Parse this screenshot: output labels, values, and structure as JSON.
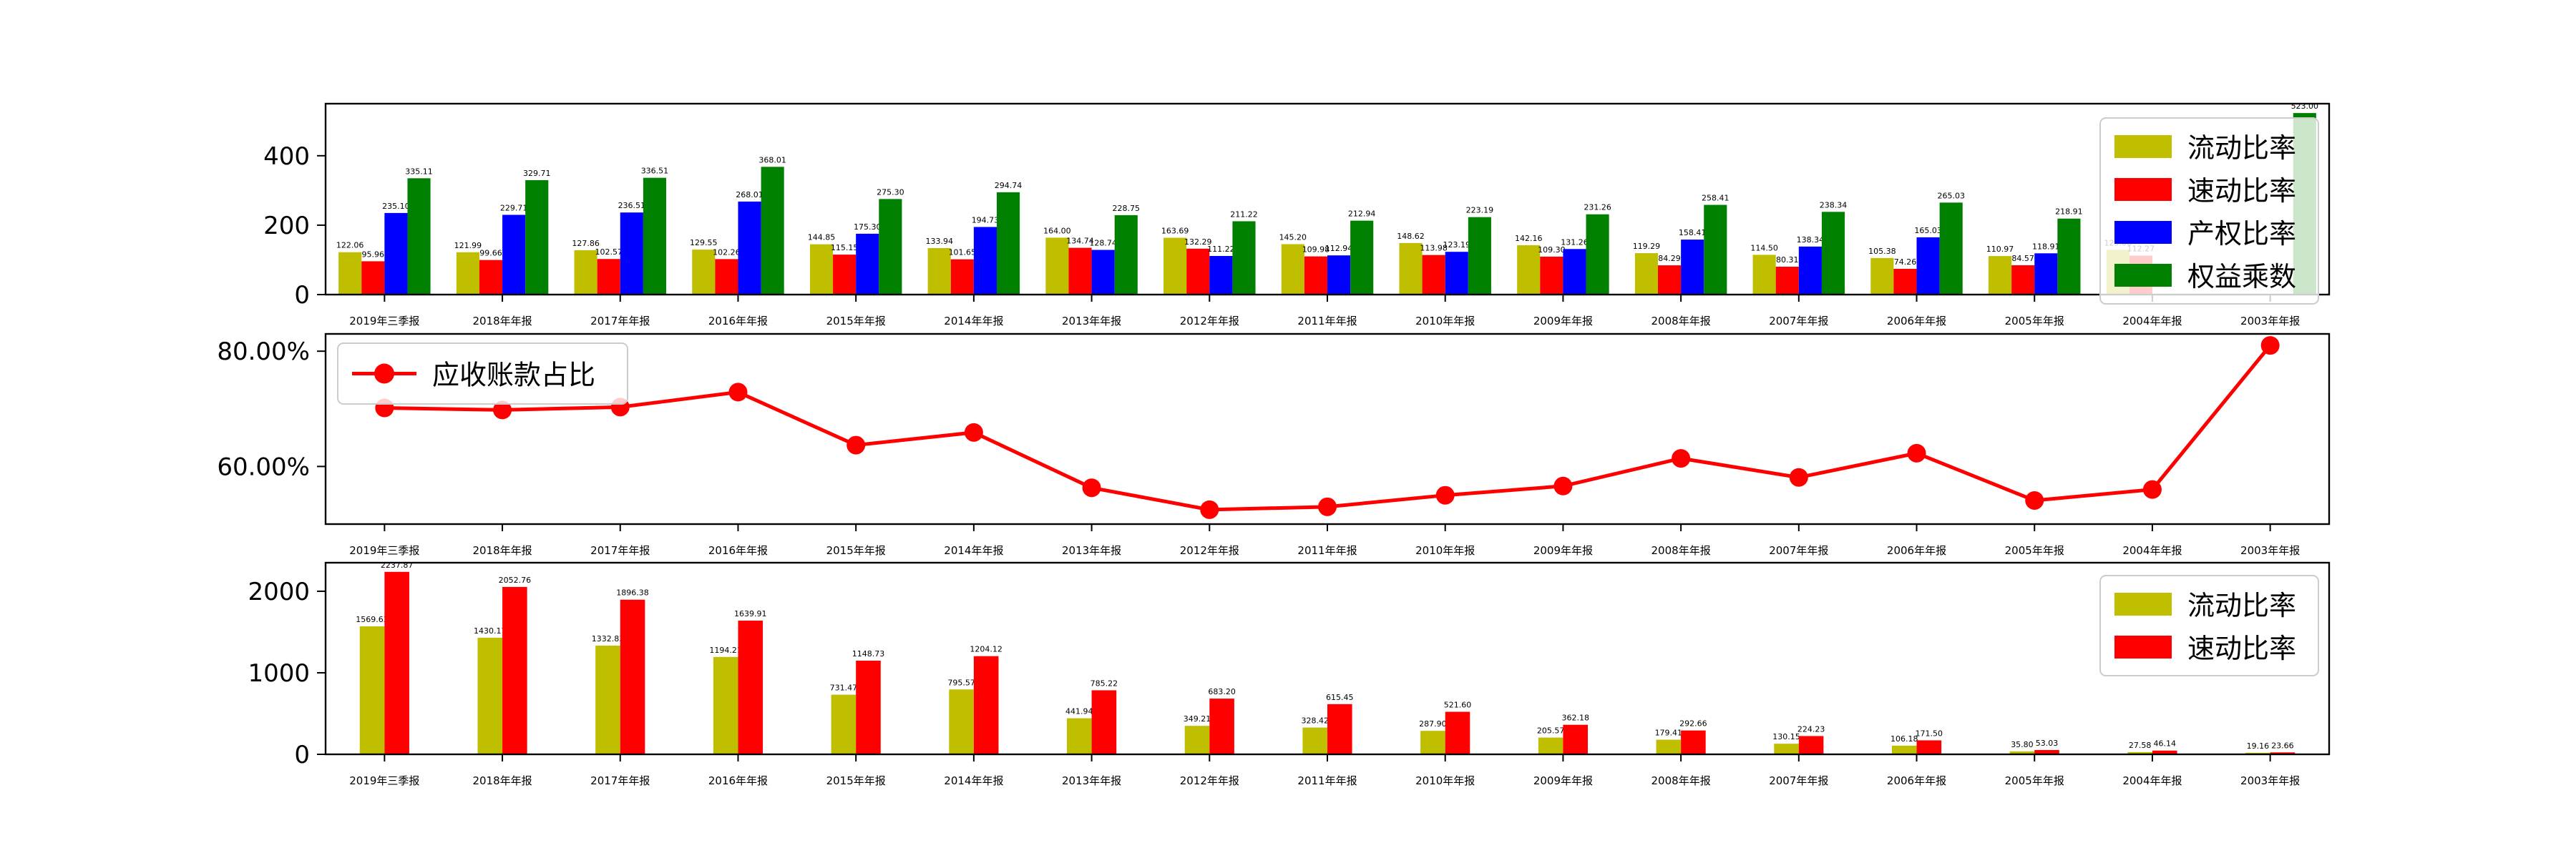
{
  "chart_data": [
    {
      "type": "bar",
      "categories": [
        "2019年三季报",
        "2018年年报",
        "2017年年报",
        "2016年年报",
        "2015年年报",
        "2014年年报",
        "2013年年报",
        "2012年年报",
        "2011年年报",
        "2010年年报",
        "2009年年报",
        "2008年年报",
        "2007年年报",
        "2006年年报",
        "2005年年报",
        "2004年年报",
        "2003年年报"
      ],
      "series": [
        {
          "name": "流动比率",
          "color": "#bfbf00",
          "values": [
            122.06,
            121.99,
            127.86,
            129.55,
            144.85,
            133.94,
            164.0,
            163.69,
            145.2,
            148.62,
            142.16,
            119.29,
            114.5,
            105.38,
            110.97,
            129.06,
            null
          ]
        },
        {
          "name": "速动比率",
          "color": "#ff0000",
          "values": [
            95.96,
            99.66,
            102.57,
            102.26,
            115.15,
            101.65,
            134.74,
            132.29,
            109.98,
            113.98,
            109.3,
            84.29,
            80.31,
            74.26,
            84.57,
            112.27,
            null
          ]
        },
        {
          "name": "产权比率",
          "color": "#0000ff",
          "values": [
            235.1,
            229.71,
            236.51,
            268.01,
            175.3,
            194.73,
            128.74,
            111.22,
            112.94,
            123.19,
            131.26,
            158.41,
            138.34,
            165.03,
            118.91,
            null,
            null
          ]
        },
        {
          "name": "权益乘数",
          "color": "#008000",
          "values": [
            335.11,
            329.71,
            336.51,
            368.01,
            275.3,
            294.74,
            228.75,
            211.22,
            212.94,
            223.19,
            231.26,
            258.41,
            238.34,
            265.03,
            218.91,
            null,
            523.0
          ]
        }
      ],
      "yticks": [
        0,
        200,
        400
      ],
      "ylim": [
        0,
        550
      ],
      "legend": "upper-right"
    },
    {
      "type": "line",
      "categories": [
        "2019年三季报",
        "2018年年报",
        "2017年年报",
        "2016年年报",
        "2015年年报",
        "2014年年报",
        "2013年年报",
        "2012年年报",
        "2011年年报",
        "2010年年报",
        "2009年年报",
        "2008年年报",
        "2007年年报",
        "2006年年报",
        "2005年年报",
        "2004年年报",
        "2003年年报"
      ],
      "series": [
        {
          "name": "应收账款占比",
          "color": "#ff0000",
          "values": [
            70.16,
            69.8,
            70.3,
            72.9,
            63.7,
            65.9,
            56.3,
            52.5,
            53.0,
            55.0,
            56.6,
            61.4,
            58.1,
            62.3,
            54.1,
            56.0,
            81.0
          ]
        }
      ],
      "yticks": [
        "60.00%",
        "80.00%"
      ],
      "ylim": [
        50,
        83
      ],
      "legend": "upper-left"
    },
    {
      "type": "bar",
      "categories": [
        "2019年三季报",
        "2018年年报",
        "2017年年报",
        "2016年年报",
        "2015年年报",
        "2014年年报",
        "2013年年报",
        "2012年年报",
        "2011年年报",
        "2010年年报",
        "2009年年报",
        "2008年年报",
        "2007年年报",
        "2006年年报",
        "2005年年报",
        "2004年年报",
        "2003年年报"
      ],
      "series": [
        {
          "name": "流动比率",
          "color": "#bfbf00",
          "values": [
            1569.63,
            1430.17,
            1332.83,
            1194.21,
            731.47,
            795.57,
            441.94,
            349.21,
            328.42,
            287.9,
            205.57,
            179.41,
            130.15,
            106.18,
            35.8,
            27.58,
            19.16
          ]
        },
        {
          "name": "速动比率",
          "color": "#ff0000",
          "values": [
            2237.87,
            2052.76,
            1896.38,
            1639.91,
            1148.73,
            1204.12,
            785.22,
            683.2,
            615.45,
            521.6,
            362.18,
            292.66,
            224.23,
            171.5,
            53.03,
            46.14,
            23.66
          ]
        }
      ],
      "yticks": [
        0,
        1000,
        2000
      ],
      "ylim": [
        0,
        2350
      ],
      "legend": "upper-right"
    }
  ]
}
